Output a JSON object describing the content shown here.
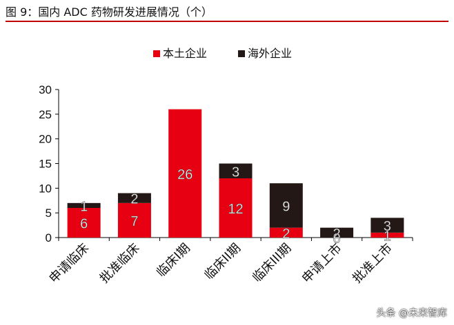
{
  "figure_title": "图 9：国内 ADC 药物研发进展情况（个）",
  "watermark": "头条 @未来智库",
  "colors": {
    "accent_rule": "#c00000",
    "domestic": "#e60012",
    "foreign": "#231815"
  },
  "chart_data": {
    "type": "bar",
    "stacked": true,
    "categories": [
      "申请临床",
      "批准临床",
      "临床I期",
      "临床II期",
      "临床III期",
      "申请上市",
      "批准上市"
    ],
    "series": [
      {
        "name": "本土企业",
        "values": [
          6,
          7,
          26,
          12,
          2,
          0,
          1
        ]
      },
      {
        "name": "海外企业",
        "values": [
          1,
          2,
          0,
          3,
          9,
          2,
          3
        ]
      }
    ],
    "data_labels": [
      [
        "6",
        "7",
        "26",
        "12",
        "2",
        "0",
        "1"
      ],
      [
        "1",
        "2",
        "",
        "3",
        "9",
        "2",
        "3"
      ]
    ],
    "ylim": [
      0,
      30
    ],
    "yticks": [
      0,
      5,
      10,
      15,
      20,
      25,
      30
    ],
    "legend_position": "top",
    "grid": false
  }
}
